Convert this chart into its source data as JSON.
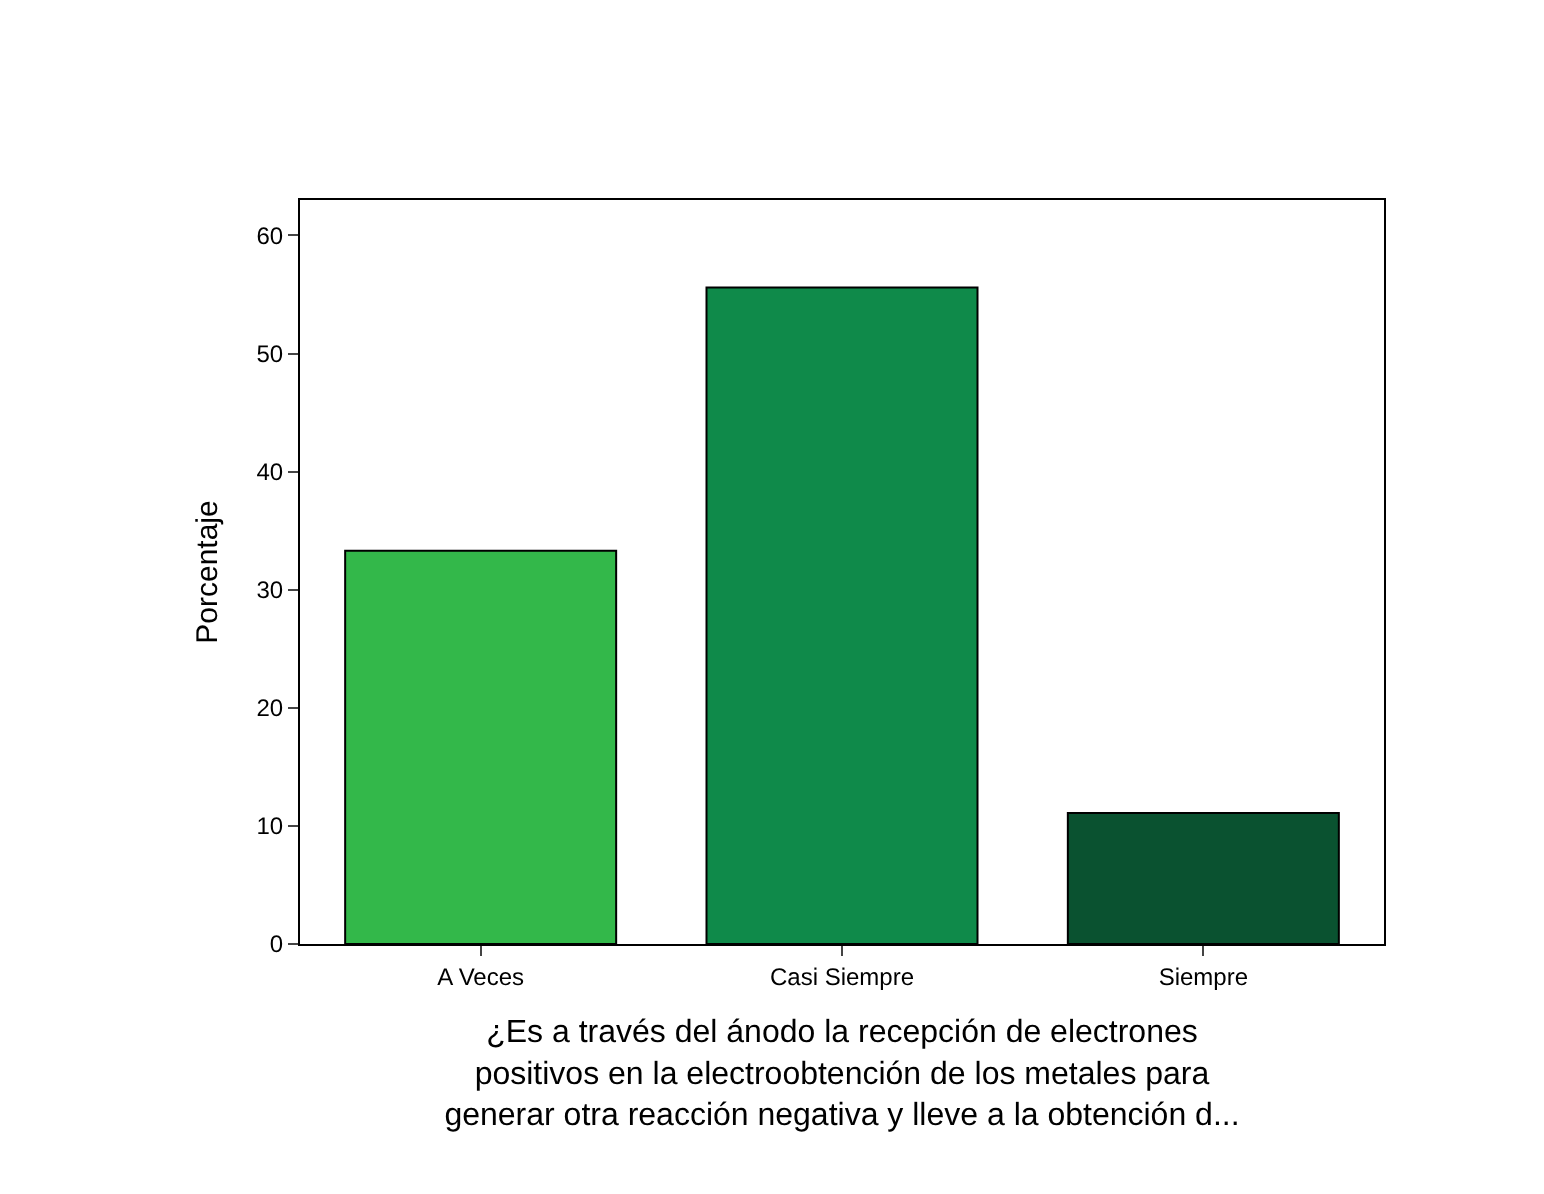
{
  "chart_data": {
    "type": "bar",
    "categories": [
      "A Veces",
      "Casi Siempre",
      "Siempre"
    ],
    "values": [
      33.3,
      55.6,
      11.1
    ],
    "colors": [
      "#33b84a",
      "#0f8a4a",
      "#0a5230"
    ],
    "xlabel": "¿Es a través del ánodo la recepción de electrones\npositivos en la electroobtención de los metales para\ngenerar otra reacción negativa y lleve a la obtención d...",
    "ylabel": "Porcentaje",
    "ylim": [
      0,
      63
    ],
    "yticks": [
      0,
      10,
      20,
      30,
      40,
      50,
      60
    ]
  }
}
